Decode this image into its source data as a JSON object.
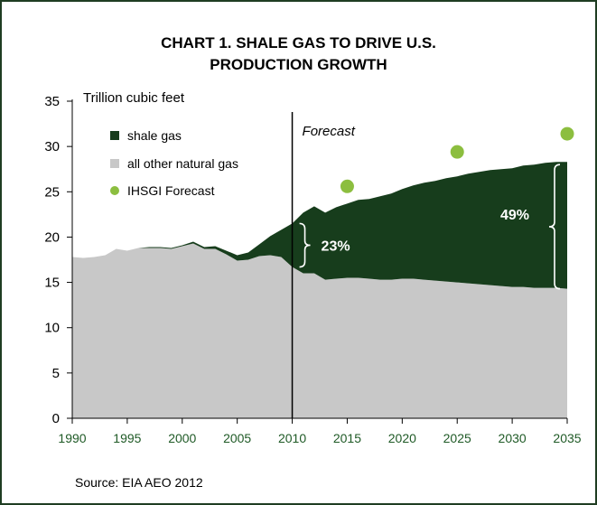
{
  "chart_data": {
    "type": "area",
    "title_lines": [
      "CHART 1. SHALE GAS TO DRIVE U.S.",
      "PRODUCTION GROWTH"
    ],
    "ylabel": "Trillion cubic feet",
    "xlabel": "",
    "xlim": [
      1990,
      2035
    ],
    "ylim": [
      0,
      35
    ],
    "x_ticks": [
      "1990",
      "1995",
      "2000",
      "2005",
      "2010",
      "2015",
      "2020",
      "2025",
      "2030",
      "2035"
    ],
    "y_ticks": [
      "0",
      "5",
      "10",
      "15",
      "20",
      "25",
      "30",
      "35"
    ],
    "x": [
      1990,
      1991,
      1992,
      1993,
      1994,
      1995,
      1996,
      1997,
      1998,
      1999,
      2000,
      2001,
      2002,
      2003,
      2004,
      2005,
      2006,
      2007,
      2008,
      2009,
      2010,
      2011,
      2012,
      2013,
      2014,
      2015,
      2016,
      2017,
      2018,
      2019,
      2020,
      2021,
      2022,
      2023,
      2024,
      2025,
      2026,
      2027,
      2028,
      2029,
      2030,
      2031,
      2032,
      2033,
      2034,
      2035
    ],
    "series": [
      {
        "name": "shale gas",
        "color": "#173d1c",
        "values": [
          0.0,
          0.0,
          0.0,
          0.0,
          0.0,
          0.0,
          0.0,
          0.1,
          0.1,
          0.1,
          0.1,
          0.2,
          0.2,
          0.3,
          0.4,
          0.6,
          0.8,
          1.3,
          2.1,
          3.0,
          4.8,
          6.7,
          7.4,
          7.4,
          7.9,
          8.2,
          8.6,
          8.8,
          9.2,
          9.5,
          9.9,
          10.3,
          10.7,
          11.0,
          11.4,
          11.7,
          12.1,
          12.4,
          12.7,
          12.9,
          13.1,
          13.4,
          13.6,
          13.8,
          13.9,
          14.0
        ]
      },
      {
        "name": "all other natural gas",
        "color": "#c8c8c8",
        "values": [
          17.8,
          17.7,
          17.8,
          18.0,
          18.7,
          18.5,
          18.8,
          18.8,
          18.8,
          18.7,
          19.0,
          19.3,
          18.7,
          18.7,
          18.1,
          17.4,
          17.5,
          17.9,
          18.0,
          17.8,
          16.7,
          16.0,
          16.0,
          15.3,
          15.4,
          15.5,
          15.5,
          15.4,
          15.3,
          15.3,
          15.4,
          15.4,
          15.3,
          15.2,
          15.1,
          15.0,
          14.9,
          14.8,
          14.7,
          14.6,
          14.5,
          14.5,
          14.4,
          14.4,
          14.4,
          14.3
        ]
      }
    ],
    "points_series": {
      "name": "IHSGI Forecast",
      "color": "#8cbe3f",
      "x": [
        2015,
        2025,
        2035
      ],
      "y": [
        25.6,
        29.4,
        31.4
      ]
    },
    "forecast_start": 2010,
    "forecast_label": "Forecast",
    "annotations": [
      {
        "text": "23%",
        "x": 2010,
        "y_low": 16.7,
        "y_high": 21.5
      },
      {
        "text": "49%",
        "x": 2035,
        "y_low": 14.3,
        "y_high": 28.0
      }
    ],
    "legend_position": "top-left",
    "grid": false
  },
  "source_text": "Source: EIA AEO 2012"
}
